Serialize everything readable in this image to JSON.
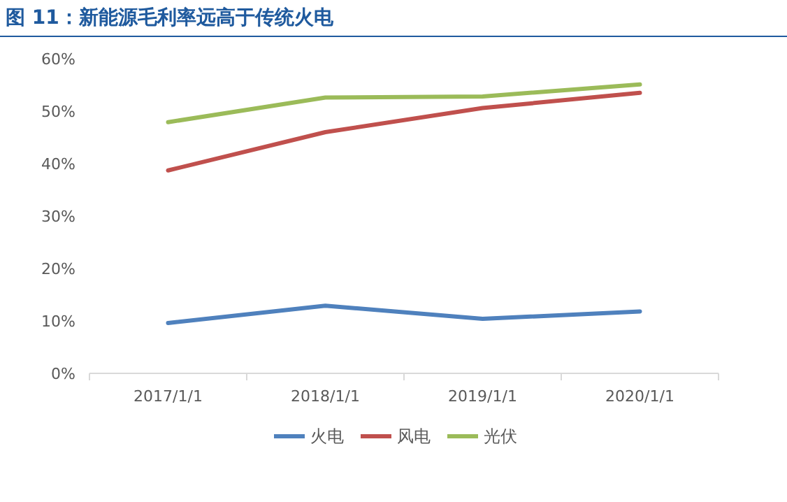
{
  "chart_data": {
    "type": "line",
    "title": "图 11：新能源毛利率远高于传统火电",
    "categories": [
      "2017/1/1",
      "2018/1/1",
      "2019/1/1",
      "2020/1/1"
    ],
    "series": [
      {
        "name": "火电",
        "color": "#4f81bd",
        "values": [
          9.6,
          12.9,
          10.4,
          11.8
        ]
      },
      {
        "name": "风电",
        "color": "#c0504d",
        "values": [
          38.7,
          46.0,
          50.6,
          53.5
        ]
      },
      {
        "name": "光伏",
        "color": "#9bbb59",
        "values": [
          47.9,
          52.6,
          52.8,
          55.1
        ]
      }
    ],
    "ylim": [
      0,
      60
    ],
    "yticks": [
      {
        "value": 0,
        "label": "0%"
      },
      {
        "value": 10,
        "label": "10%"
      },
      {
        "value": 20,
        "label": "20%"
      },
      {
        "value": 30,
        "label": "30%"
      },
      {
        "value": 40,
        "label": "40%"
      },
      {
        "value": 50,
        "label": "50%"
      },
      {
        "value": 60,
        "label": "60%"
      }
    ],
    "grid": false,
    "legend": "bottom",
    "marker": "none",
    "line_style": "solid"
  }
}
